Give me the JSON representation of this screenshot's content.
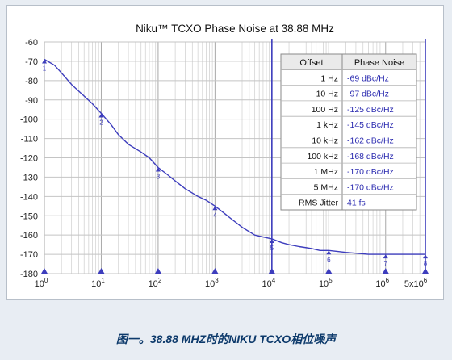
{
  "caption": "图一。38.88 MHZ时的NIKU TCXO相位噪声",
  "chart_data": {
    "type": "line",
    "title": "Niku™ TCXO Phase Noise at 38.88 MHz",
    "xlabel": "",
    "ylabel": "",
    "x_scale": "log",
    "xlim": [
      1,
      5000000
    ],
    "ylim": [
      -180,
      -60
    ],
    "grid": true,
    "x_tick_labels": [
      {
        "value": 1,
        "base": "10",
        "exp": "0"
      },
      {
        "value": 10,
        "base": "10",
        "exp": "1"
      },
      {
        "value": 100,
        "base": "10",
        "exp": "2"
      },
      {
        "value": 1000,
        "base": "10",
        "exp": "3"
      },
      {
        "value": 10000,
        "base": "10",
        "exp": "4"
      },
      {
        "value": 100000,
        "base": "10",
        "exp": "5"
      },
      {
        "value": 1000000,
        "base": "10",
        "exp": "6"
      },
      {
        "value": 5000000,
        "base": "5x10",
        "exp": "6"
      }
    ],
    "y_ticks": [
      -60,
      -70,
      -80,
      -90,
      -100,
      -110,
      -120,
      -130,
      -140,
      -150,
      -160,
      -170,
      -180
    ],
    "vertical_markers": [
      10000,
      5000000
    ],
    "series": [
      {
        "name": "",
        "color": "#3d3dbd",
        "x": [
          1,
          1.5,
          2,
          3,
          5,
          7,
          10,
          15,
          20,
          30,
          50,
          70,
          100,
          150,
          200,
          300,
          500,
          700,
          1000,
          1500,
          2000,
          3000,
          5000,
          7000,
          10000,
          15000,
          20000,
          30000,
          50000,
          70000,
          100000,
          200000,
          500000,
          1000000,
          2000000,
          4000000,
          5000000
        ],
        "y": [
          -69,
          -72,
          -76,
          -82,
          -88,
          -92,
          -97,
          -103,
          -108,
          -113,
          -117,
          -120,
          -125,
          -129,
          -132,
          -136,
          -140,
          -142,
          -145,
          -149,
          -152,
          -156,
          -160,
          -161,
          -162,
          -164,
          -165,
          -166,
          -167,
          -168,
          -168,
          -169,
          -170,
          -170,
          -170,
          -170,
          -170
        ]
      }
    ],
    "markers": [
      {
        "label": "1",
        "x": 1,
        "y": -69
      },
      {
        "label": "2",
        "x": 10,
        "y": -97
      },
      {
        "label": "3",
        "x": 100,
        "y": -125
      },
      {
        "label": "4",
        "x": 1000,
        "y": -145
      },
      {
        "label": "5",
        "x": 10000,
        "y": -162
      },
      {
        "label": "6",
        "x": 100000,
        "y": -168
      },
      {
        "label": "7",
        "x": 1000000,
        "y": -170
      },
      {
        "label": "8",
        "x": 5000000,
        "y": -170
      }
    ],
    "table": {
      "headers": [
        "Offset",
        "Phase Noise"
      ],
      "rows": [
        [
          "1 Hz",
          "-69 dBc/Hz"
        ],
        [
          "10 Hz",
          "-97 dBc/Hz"
        ],
        [
          "100 Hz",
          "-125 dBc/Hz"
        ],
        [
          "1 kHz",
          "-145 dBc/Hz"
        ],
        [
          "10 kHz",
          "-162 dBc/Hz"
        ],
        [
          "100 kHz",
          "-168 dBc/Hz"
        ],
        [
          "1 MHz",
          "-170 dBc/Hz"
        ],
        [
          "5 MHz",
          "-170 dBc/Hz"
        ],
        [
          "RMS Jitter",
          "41 fs"
        ]
      ]
    }
  }
}
